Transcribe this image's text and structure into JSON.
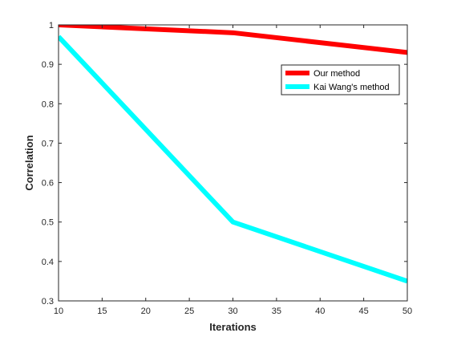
{
  "chart_data": {
    "type": "line",
    "title": "",
    "xlabel": "Iterations",
    "ylabel": "Correlation",
    "xlim": [
      10,
      50
    ],
    "ylim": [
      0.3,
      1
    ],
    "xticks": [
      10,
      15,
      20,
      25,
      30,
      35,
      40,
      45,
      50
    ],
    "yticks": [
      0.3,
      0.4,
      0.5,
      0.6,
      0.7,
      0.8,
      0.9,
      1
    ],
    "yticklabels": [
      "0.3",
      "0.4",
      "0.5",
      "0.6",
      "0.7",
      "0.8",
      "0.9",
      "1"
    ],
    "grid": false,
    "legend_position": "top-right",
    "series": [
      {
        "name": "Our method",
        "color": "#ff0000",
        "x": [
          10,
          30,
          50
        ],
        "y": [
          1.0,
          0.98,
          0.93
        ]
      },
      {
        "name": "Kai Wang's method",
        "color": "#00ffff",
        "x": [
          10,
          30,
          50
        ],
        "y": [
          0.97,
          0.5,
          0.35
        ]
      }
    ]
  }
}
